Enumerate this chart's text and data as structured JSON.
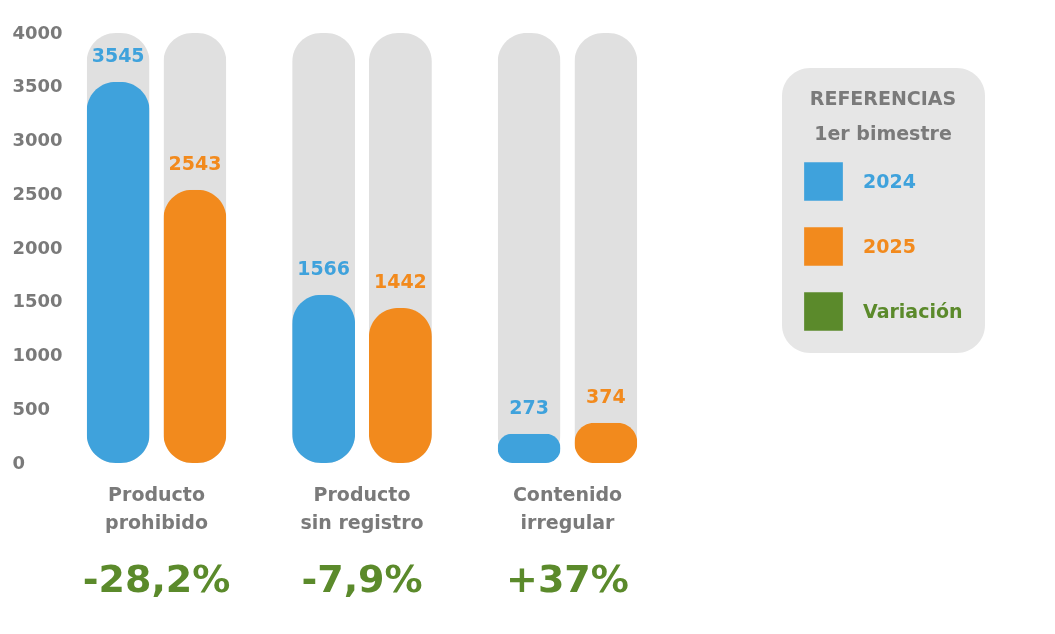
{
  "chart_data": {
    "type": "bar",
    "legend_title": "REFERENCIAS",
    "subtitle": "1er bimestre",
    "categories": [
      "Producto prohibido",
      "Producto sin registro",
      "Contenido irregular"
    ],
    "series": [
      {
        "name": "2024",
        "color": "#3fa2dc",
        "values": [
          3545,
          1566,
          273
        ]
      },
      {
        "name": "2025",
        "color": "#f28a1d",
        "values": [
          2543,
          1442,
          374
        ]
      },
      {
        "name": "Variación",
        "color": "#5b8a2b",
        "values": [
          null,
          null,
          null
        ],
        "value_labels": [
          "-28,2%",
          "-7,9%",
          "+37%"
        ]
      }
    ],
    "ylim": [
      0,
      4000
    ],
    "yticks": [
      0,
      500,
      1000,
      1500,
      2000,
      2500,
      3000,
      3500,
      4000
    ],
    "data_labels": true,
    "grid": false,
    "legend": "right"
  }
}
